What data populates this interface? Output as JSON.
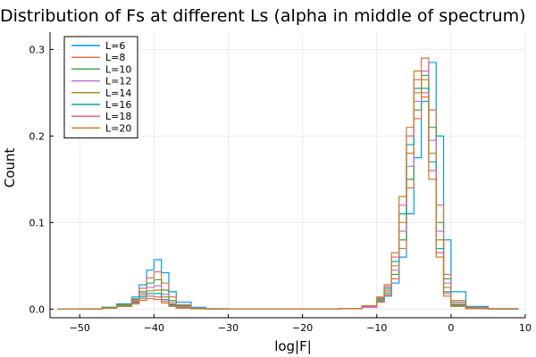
{
  "chart_data": {
    "type": "line",
    "title": "Distribution of Fs at different Ls (alpha in middle of spectrum)",
    "xlabel": "log|F|",
    "ylabel": "Count",
    "xlim": [
      -54,
      10
    ],
    "ylim": [
      -0.01,
      0.32
    ],
    "xticks": [
      -50,
      -40,
      -30,
      -20,
      -10,
      0,
      10
    ],
    "xtick_labels": [
      "−50",
      "−40",
      "−30",
      "−20",
      "−10",
      "0",
      "10"
    ],
    "yticks": [
      0.0,
      0.1,
      0.2,
      0.3
    ],
    "ytick_labels": [
      "0.0",
      "0.1",
      "0.2",
      "0.3"
    ],
    "grid": true,
    "legend_position": "top-left",
    "x": [
      -53,
      -50,
      -47,
      -45,
      -43,
      -42,
      -41,
      -40,
      -39,
      -38,
      -37,
      -35,
      -33,
      -30,
      -25,
      -20,
      -15,
      -12,
      -10,
      -9,
      -8,
      -7,
      -6,
      -5,
      -4,
      -3,
      -2,
      -1,
      0,
      2,
      5,
      9
    ],
    "series": [
      {
        "name": "L=6",
        "color": "#009AFA",
        "values": [
          0,
          0.0003,
          0.002,
          0.006,
          0.014,
          0.028,
          0.045,
          0.057,
          0.042,
          0.02,
          0.008,
          0.002,
          0.0005,
          0.0001,
          0,
          0,
          0.0005,
          0.002,
          0.008,
          0.015,
          0.03,
          0.06,
          0.11,
          0.175,
          0.24,
          0.285,
          0.2,
          0.08,
          0.02,
          0.003,
          0.0005,
          0
        ]
      },
      {
        "name": "L=8",
        "color": "#E36F47",
        "values": [
          0,
          0.0002,
          0.002,
          0.005,
          0.012,
          0.024,
          0.036,
          0.043,
          0.03,
          0.014,
          0.005,
          0.001,
          0.0003,
          0,
          0,
          0,
          0.0005,
          0.002,
          0.008,
          0.016,
          0.035,
          0.07,
          0.14,
          0.22,
          0.29,
          0.23,
          0.12,
          0.04,
          0.01,
          0.002,
          0.0003,
          0
        ]
      },
      {
        "name": "L=10",
        "color": "#3EA44E",
        "values": [
          0,
          0.0002,
          0.002,
          0.005,
          0.011,
          0.02,
          0.03,
          0.034,
          0.022,
          0.01,
          0.004,
          0.001,
          0.0002,
          0,
          0,
          0,
          0.0005,
          0.002,
          0.009,
          0.018,
          0.04,
          0.08,
          0.15,
          0.23,
          0.27,
          0.21,
          0.1,
          0.035,
          0.008,
          0.001,
          0.0002,
          0
        ]
      },
      {
        "name": "L=12",
        "color": "#C270D2",
        "values": [
          0,
          0.0002,
          0.001,
          0.004,
          0.01,
          0.018,
          0.025,
          0.027,
          0.017,
          0.008,
          0.003,
          0.0008,
          0.0002,
          0,
          0,
          0,
          0.0005,
          0.002,
          0.01,
          0.02,
          0.045,
          0.09,
          0.165,
          0.24,
          0.275,
          0.195,
          0.09,
          0.03,
          0.006,
          0.001,
          0.0002,
          0
        ]
      },
      {
        "name": "L=14",
        "color": "#AC8D18",
        "values": [
          0,
          0.0001,
          0.001,
          0.004,
          0.009,
          0.016,
          0.021,
          0.022,
          0.014,
          0.006,
          0.002,
          0.0006,
          0.0001,
          0,
          0,
          0,
          0.0005,
          0.003,
          0.011,
          0.022,
          0.05,
          0.1,
          0.18,
          0.25,
          0.265,
          0.18,
          0.08,
          0.025,
          0.005,
          0.001,
          0.0001,
          0
        ]
      },
      {
        "name": "L=16",
        "color": "#00A9AD",
        "values": [
          0,
          0.0001,
          0.001,
          0.003,
          0.008,
          0.014,
          0.018,
          0.018,
          0.011,
          0.005,
          0.0015,
          0.0005,
          0.0001,
          0,
          0,
          0,
          0.0005,
          0.003,
          0.012,
          0.024,
          0.055,
          0.11,
          0.19,
          0.255,
          0.255,
          0.17,
          0.07,
          0.02,
          0.004,
          0.0008,
          0.0001,
          0
        ]
      },
      {
        "name": "L=18",
        "color": "#ED5E93",
        "values": [
          0,
          0.0001,
          0.001,
          0.003,
          0.007,
          0.012,
          0.015,
          0.014,
          0.009,
          0.004,
          0.0012,
          0.0004,
          0.0001,
          0,
          0,
          0,
          0.0006,
          0.003,
          0.013,
          0.026,
          0.06,
          0.12,
          0.2,
          0.265,
          0.25,
          0.16,
          0.065,
          0.018,
          0.003,
          0.0006,
          0.0001,
          0
        ]
      },
      {
        "name": "L=20",
        "color": "#C68125",
        "values": [
          0,
          0.0001,
          0.001,
          0.003,
          0.006,
          0.01,
          0.012,
          0.011,
          0.007,
          0.003,
          0.001,
          0.0003,
          0.0001,
          0,
          0,
          0,
          0.0006,
          0.004,
          0.014,
          0.028,
          0.065,
          0.13,
          0.21,
          0.275,
          0.245,
          0.15,
          0.06,
          0.015,
          0.003,
          0.0005,
          0.0001,
          0
        ]
      }
    ]
  }
}
